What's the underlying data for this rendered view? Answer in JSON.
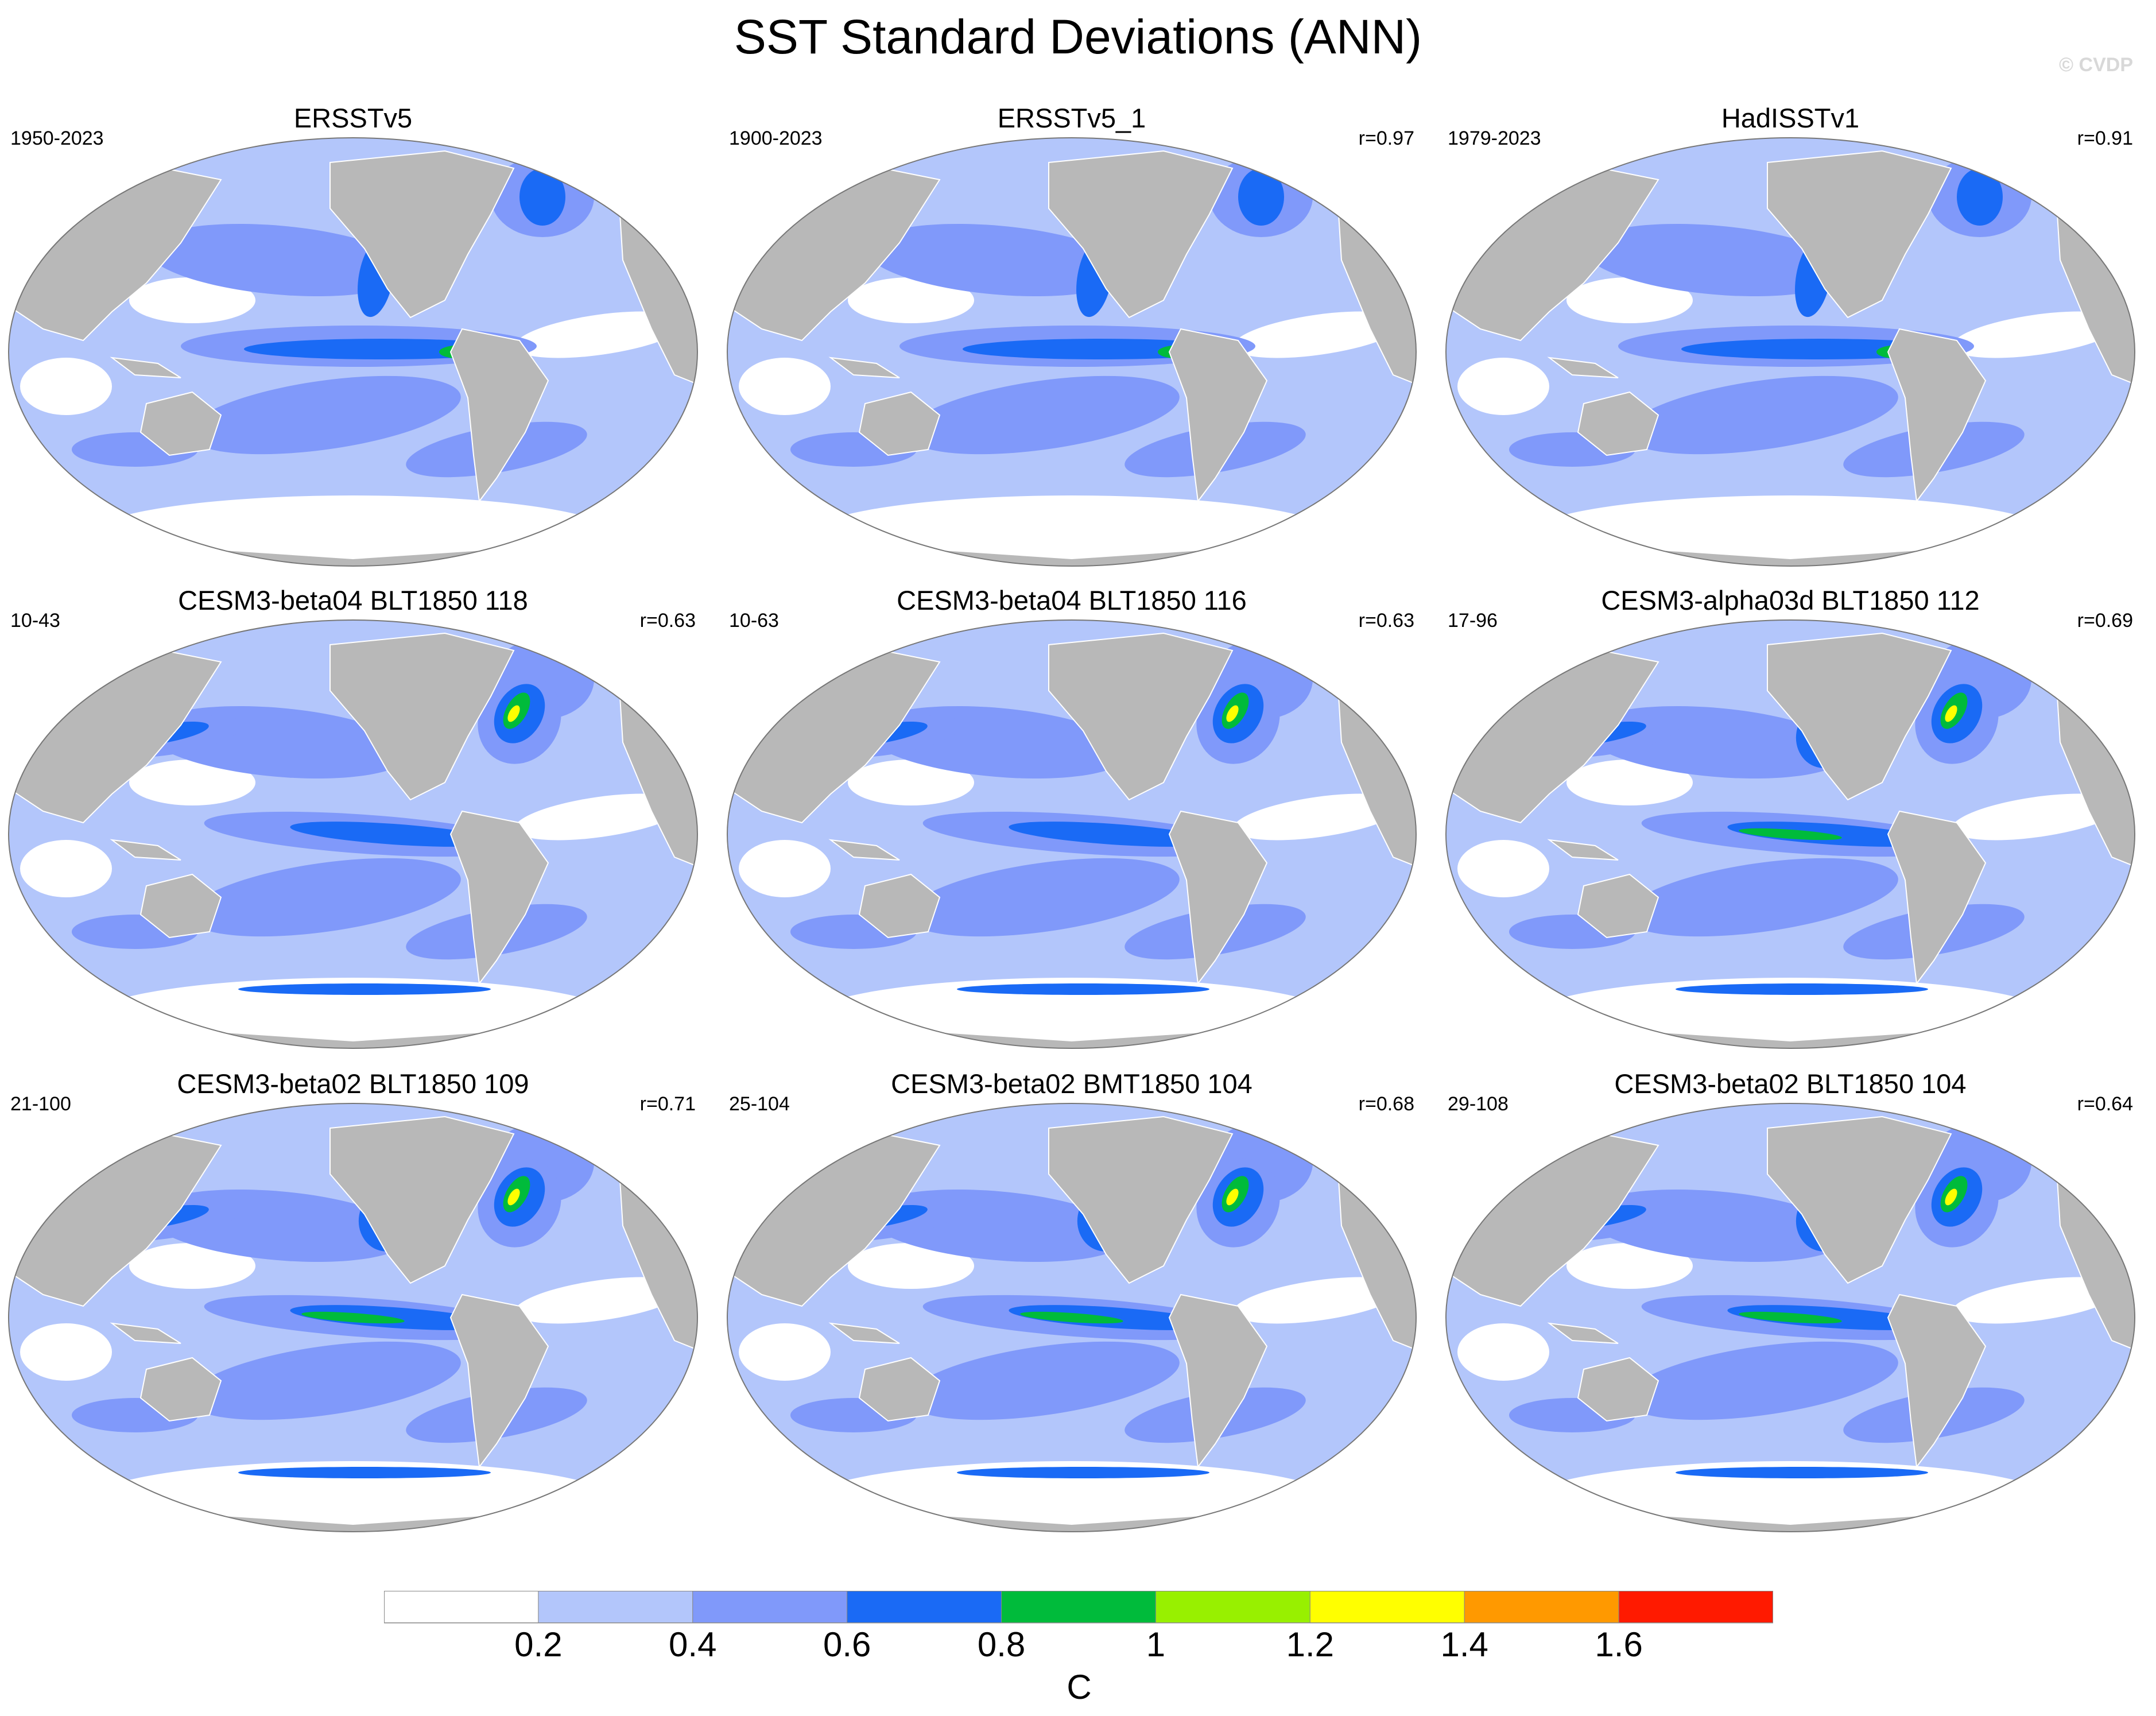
{
  "title": "SST Standard Deviations (ANN)",
  "copyright": "© CVDP",
  "colors": {
    "land": "#b8b8b8",
    "border": "#555555",
    "levels": [
      "#ffffff",
      "#b3c6fb",
      "#8099fa",
      "#1a6af5",
      "#00bb3b",
      "#98f000",
      "#ffff00",
      "#ff9900",
      "#ff1a00"
    ]
  },
  "panels": [
    {
      "title": "ERSSTv5",
      "years": "1950-2023",
      "corr": "",
      "variant": "obs"
    },
    {
      "title": "ERSSTv5_1",
      "years": "1900-2023",
      "corr": "r=0.97",
      "variant": "obs"
    },
    {
      "title": "HadISSTv1",
      "years": "1979-2023",
      "corr": "r=0.91",
      "variant": "obs2"
    },
    {
      "title": "CESM3-beta04 BLT1850 118",
      "years": "10-43",
      "corr": "r=0.63",
      "variant": "model"
    },
    {
      "title": "CESM3-beta04 BLT1850 116",
      "years": "10-63",
      "corr": "r=0.63",
      "variant": "model"
    },
    {
      "title": "CESM3-alpha03d BLT1850 112",
      "years": "17-96",
      "corr": "r=0.69",
      "variant": "model2"
    },
    {
      "title": "CESM3-beta02 BLT1850 109",
      "years": "21-100",
      "corr": "r=0.71",
      "variant": "model3"
    },
    {
      "title": "CESM3-beta02 BMT1850 104",
      "years": "25-104",
      "corr": "r=0.68",
      "variant": "model3"
    },
    {
      "title": "CESM3-beta02 BLT1850 104",
      "years": "29-108",
      "corr": "r=0.64",
      "variant": "model3"
    }
  ],
  "colorbar": {
    "labels": [
      "0.2",
      "0.4",
      "0.6",
      "0.8",
      "1",
      "1.2",
      "1.4",
      "1.6"
    ],
    "units": "C"
  }
}
